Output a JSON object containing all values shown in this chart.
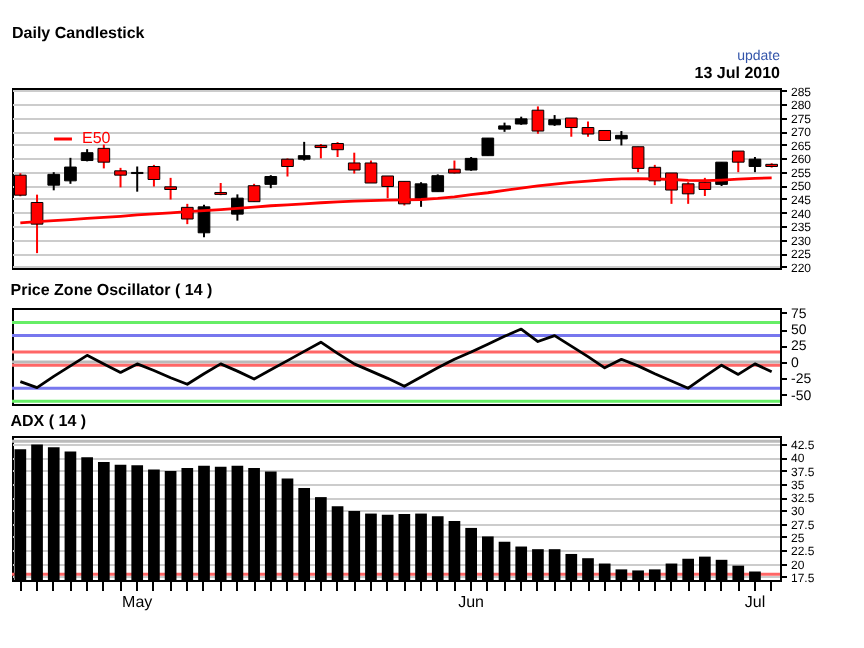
{
  "chart_data": [
    {
      "type": "candlestick",
      "title": "Daily Candlestick",
      "annotations": [
        "13 Jul 2010",
        "update"
      ],
      "categories": [
        null,
        null,
        null,
        null,
        null,
        null,
        null,
        null,
        null,
        null,
        null,
        null,
        null,
        null,
        null,
        null,
        null,
        null,
        null,
        null,
        null,
        null,
        null,
        null,
        null,
        null,
        null,
        null,
        null,
        null,
        null,
        null,
        null,
        null,
        null,
        null,
        null,
        null,
        null,
        null,
        null,
        null,
        null,
        null,
        null,
        null
      ],
      "ohlc": [
        [
          253.8,
          254.5,
          246,
          246.4
        ],
        [
          243.7,
          246.6,
          225,
          235.7
        ],
        [
          250.1,
          254.9,
          248.2,
          254.1
        ],
        [
          251.7,
          260.2,
          250.6,
          256.8
        ],
        [
          259.2,
          263.4,
          258.9,
          262.1
        ],
        [
          263.7,
          265.1,
          256.3,
          258.6
        ],
        [
          255.4,
          256.5,
          249.3,
          253.8
        ],
        [
          254.4,
          257,
          247.7,
          254.8
        ],
        [
          257,
          257.6,
          249.6,
          252.2
        ],
        [
          249.5,
          252.8,
          244.8,
          248.5
        ],
        [
          241.9,
          243.2,
          235.7,
          237.6
        ],
        [
          232.5,
          242.9,
          230.9,
          242.1
        ],
        [
          247.4,
          250.9,
          246.4,
          246.7
        ],
        [
          239.4,
          246.7,
          237,
          245.3
        ],
        [
          249.9,
          250.6,
          244,
          244
        ],
        [
          250.4,
          253.8,
          249,
          253.3
        ],
        [
          259.7,
          260,
          253.3,
          257
        ],
        [
          259.7,
          266.1,
          259.2,
          261
        ],
        [
          264.8,
          265.3,
          260,
          264
        ],
        [
          265.5,
          266,
          260.5,
          263.2
        ],
        [
          258.3,
          262.1,
          254.4,
          255.7
        ],
        [
          258.3,
          259.2,
          250.9,
          250.9
        ],
        [
          253.5,
          253.5,
          245.3,
          249.6
        ],
        [
          251.5,
          251.5,
          242.6,
          243.2
        ],
        [
          245.1,
          251.2,
          242.1,
          250.6
        ],
        [
          247.7,
          254.1,
          247.7,
          253.6
        ],
        [
          256,
          259.2,
          254.4,
          254.6
        ],
        [
          255.7,
          260.5,
          255.4,
          260
        ],
        [
          261,
          267.5,
          261,
          267.5
        ],
        [
          270.8,
          273.2,
          269.8,
          272
        ],
        [
          272.7,
          275.4,
          272.4,
          274.6
        ],
        [
          277.8,
          279.2,
          269.1,
          270.1
        ],
        [
          272.4,
          276,
          272,
          274.3
        ],
        [
          274.9,
          274.9,
          268,
          271.4
        ],
        [
          271.4,
          273.6,
          268,
          269
        ],
        [
          270.3,
          270.3,
          266.6,
          266.6
        ],
        [
          267.2,
          270.1,
          264.8,
          268.5
        ],
        [
          264.3,
          264.3,
          254.9,
          256.3
        ],
        [
          256.7,
          257.6,
          250.1,
          251.7
        ],
        [
          254.6,
          254.6,
          243.2,
          248.3
        ],
        [
          250.6,
          251.2,
          243.2,
          246.9
        ],
        [
          251.2,
          252.8,
          246.1,
          248.5
        ],
        [
          250.4,
          258.6,
          249.8,
          258.6
        ],
        [
          262.7,
          262.7,
          254.9,
          258.6
        ],
        [
          257,
          260.5,
          254.9,
          259.7
        ],
        [
          257.8,
          258.2,
          256.6,
          257
        ]
      ],
      "colors": [
        "#ff0000",
        "#ff0000",
        "#000000",
        "#000000",
        "#000000",
        "#ff0000",
        "#ff0000",
        "#000000",
        "#ff0000",
        "#ff0000",
        "#ff0000",
        "#000000",
        "#ff0000",
        "#000000",
        "#ff0000",
        "#000000",
        "#ff0000",
        "#000000",
        "#ff0000",
        "#ff0000",
        "#ff0000",
        "#ff0000",
        "#ff0000",
        "#ff0000",
        "#000000",
        "#000000",
        "#ff0000",
        "#000000",
        "#000000",
        "#000000",
        "#000000",
        "#ff0000",
        "#000000",
        "#ff0000",
        "#ff0000",
        "#ff0000",
        "#000000",
        "#ff0000",
        "#ff0000",
        "#ff0000",
        "#ff0000",
        "#ff0000",
        "#000000",
        "#ff0000",
        "#000000",
        "#ff0000"
      ],
      "series": [
        {
          "name": "E50",
          "type": "line",
          "color": "#ff0000",
          "values": [
            236.2,
            236.6,
            237.0,
            237.4,
            237.8,
            238.2,
            238.6,
            239.1,
            239.5,
            239.9,
            240.3,
            240.7,
            241.1,
            241.5,
            242.0,
            242.5,
            242.8,
            243.2,
            243.6,
            243.9,
            244.2,
            244.4,
            244.6,
            244.7,
            244.8,
            245.2,
            245.8,
            246.6,
            247.3,
            248.2,
            249.0,
            249.8,
            250.5,
            251.1,
            251.6,
            252.1,
            252.4,
            252.5,
            252.4,
            252.2,
            251.9,
            251.8,
            252.0,
            252.3,
            252.6,
            252.8
          ]
        }
      ],
      "ylim": [
        219.5,
        286
      ],
      "yticks": [
        220,
        225,
        230,
        235,
        240,
        245,
        250,
        255,
        260,
        265,
        270,
        275,
        280,
        285
      ],
      "grid": "y",
      "legend": "top left",
      "tick_labels": "y"
    },
    {
      "type": "line",
      "title": "Price Zone Oscillator ( 14 )",
      "categories": [
        null,
        null,
        null,
        null,
        null,
        null,
        null,
        null,
        null,
        null,
        null,
        null,
        null,
        null,
        null,
        null,
        null,
        null,
        null,
        null,
        null,
        null,
        null,
        null,
        null,
        null,
        null,
        null,
        null,
        null,
        null,
        null,
        null,
        null,
        null,
        null,
        null,
        null,
        null,
        null,
        null,
        null,
        null,
        null,
        null,
        null
      ],
      "series": [
        {
          "color": "#000000",
          "values": [
            -30,
            -39,
            -22,
            -6,
            10,
            -3,
            -16,
            -3,
            -13,
            -24,
            -34,
            -18,
            -3,
            -14,
            -26,
            -12,
            2,
            16,
            30,
            13,
            -3,
            -14,
            -25,
            -37,
            -23,
            -9,
            4,
            15,
            27,
            39,
            50,
            31,
            40,
            24,
            8,
            -9,
            4,
            -6,
            -18,
            -29,
            -40,
            -22,
            -5,
            -19,
            -3,
            -15
          ]
        }
      ],
      "ylim": [
        -64,
        82
      ],
      "yticks": [
        -50,
        -25,
        0,
        25,
        50,
        75
      ],
      "ref_lines": [
        {
          "axis": "y",
          "value": 60,
          "color": "#66ee66"
        },
        {
          "axis": "y",
          "value": 40,
          "color": "#7777ee"
        },
        {
          "axis": "y",
          "value": 15,
          "color": "#ff6666"
        },
        {
          "axis": "y",
          "value": 0,
          "color": "#bbbbbb"
        },
        {
          "axis": "y",
          "value": -5,
          "color": "#ff6666"
        },
        {
          "axis": "y",
          "value": -40,
          "color": "#7777ee"
        },
        {
          "axis": "y",
          "value": -60,
          "color": "#66ee66"
        }
      ],
      "tick_labels": "y"
    },
    {
      "type": "bar",
      "title": "ADX ( 14 )",
      "categories": [
        null,
        null,
        null,
        null,
        null,
        null,
        null,
        "May",
        null,
        null,
        null,
        null,
        null,
        null,
        null,
        null,
        null,
        null,
        null,
        null,
        null,
        null,
        null,
        null,
        null,
        null,
        null,
        "Jun",
        null,
        null,
        null,
        null,
        null,
        null,
        null,
        null,
        null,
        null,
        null,
        null,
        null,
        null,
        null,
        null,
        "Jul",
        null
      ],
      "series": [
        {
          "color": "#000000",
          "values": [
            41.5,
            42.4,
            41.9,
            41.1,
            40.0,
            39.1,
            38.6,
            38.5,
            37.7,
            37.4,
            38,
            38.4,
            38.2,
            38.4,
            38,
            37.3,
            36,
            34.2,
            32.5,
            30.8,
            29.9,
            29.4,
            29.2,
            29.3,
            29.4,
            28.9,
            28,
            26.7,
            25.1,
            24.1,
            23.2,
            22.7,
            22.7,
            21.8,
            21,
            20,
            18.9,
            18.7,
            18.9,
            20,
            20.9,
            21.3,
            20.7,
            19.6,
            18.5,
            null
          ]
        }
      ],
      "ylim": [
        16.9,
        44
      ],
      "yticks": [
        17.5,
        20,
        22.5,
        25,
        27.5,
        30,
        32.5,
        35,
        37.5,
        40,
        42.5
      ],
      "grid": "y",
      "ref_lines": [
        {
          "axis": "y",
          "value": 18,
          "color": "#ff6666"
        },
        {
          "axis": "y",
          "value": 43,
          "color": "#bbbbbb"
        }
      ]
    }
  ]
}
